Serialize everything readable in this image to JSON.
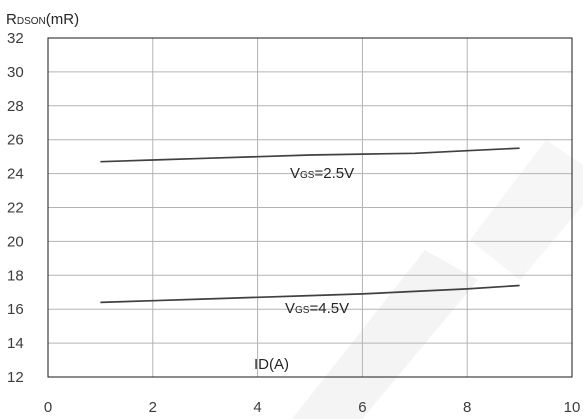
{
  "chart_data": {
    "type": "line",
    "x": [
      1,
      2,
      3,
      4,
      5,
      6,
      7,
      8,
      9
    ],
    "series": [
      {
        "name": "VGS=2.5V",
        "label_main": "V",
        "label_sub": "GS",
        "label_tail": "=2.5V",
        "values": [
          24.7,
          24.8,
          24.9,
          25.0,
          25.1,
          25.15,
          25.2,
          25.35,
          25.5
        ]
      },
      {
        "name": "VGS=4.5V",
        "label_main": "V",
        "label_sub": "GS",
        "label_tail": "=4.5V",
        "values": [
          16.4,
          16.5,
          16.6,
          16.7,
          16.8,
          16.9,
          17.05,
          17.2,
          17.4
        ]
      }
    ],
    "xlabel": "ID(A)",
    "ylabel": "RDSON(mR)",
    "ylabel_main": "R",
    "ylabel_sub": "DSON",
    "ylabel_tail": "(mR)",
    "xlim": [
      0,
      10
    ],
    "ylim": [
      12,
      32
    ],
    "xticks": [
      0,
      2,
      4,
      6,
      8,
      10
    ],
    "yticks": [
      12,
      14,
      16,
      18,
      20,
      22,
      24,
      26,
      28,
      30,
      32
    ],
    "grid": true,
    "legend": "inline",
    "line_color": "#404040",
    "grid_color": "#b3b3b3"
  }
}
